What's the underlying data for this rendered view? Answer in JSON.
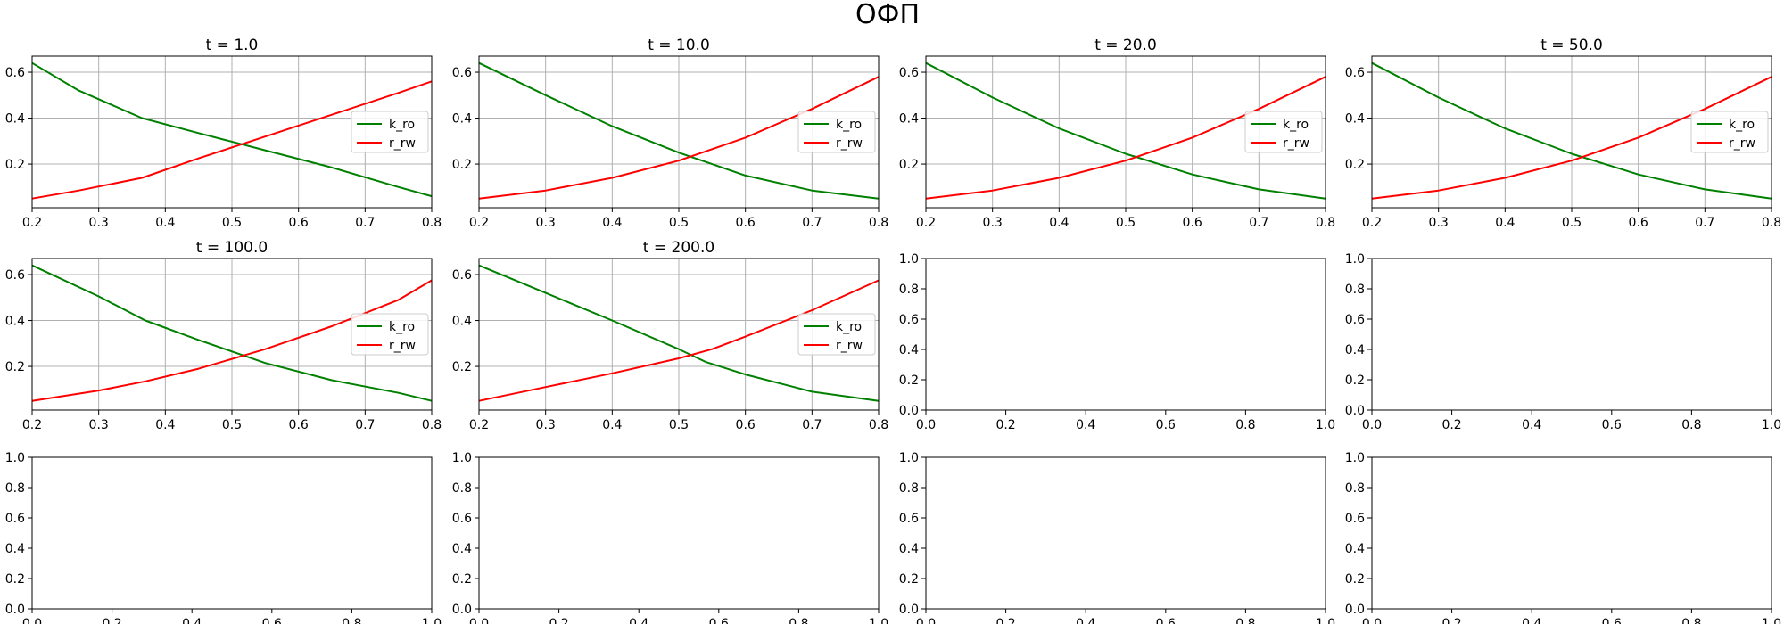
{
  "figure": {
    "title": "ОФП"
  },
  "colors": {
    "k_ro": "#008000",
    "r_rw": "#ff0000",
    "grid": "#b0b0b0",
    "axes": "#000000"
  },
  "chart_data": [
    {
      "type": "line",
      "title": "t = 1.0",
      "grid": true,
      "legend": "center-right",
      "xlim": [
        0.2,
        0.8
      ],
      "ylim": [
        0.01,
        0.67
      ],
      "xticks": [
        "0.2",
        "0.3",
        "0.4",
        "0.5",
        "0.6",
        "0.7",
        "0.8"
      ],
      "yticks": [
        "0.2",
        "0.4",
        "0.6"
      ],
      "series": [
        {
          "name": "k_ro",
          "x": [
            0.2,
            0.27,
            0.365,
            0.45,
            0.55,
            0.65,
            0.75,
            0.8
          ],
          "y": [
            0.64,
            0.52,
            0.4,
            0.335,
            0.26,
            0.185,
            0.1,
            0.06
          ]
        },
        {
          "name": "r_rw",
          "x": [
            0.2,
            0.27,
            0.365,
            0.45,
            0.55,
            0.65,
            0.75,
            0.8
          ],
          "y": [
            0.05,
            0.085,
            0.14,
            0.225,
            0.32,
            0.415,
            0.51,
            0.56
          ]
        }
      ]
    },
    {
      "type": "line",
      "title": "t = 10.0",
      "grid": true,
      "legend": "center-right",
      "xlim": [
        0.2,
        0.8
      ],
      "ylim": [
        0.01,
        0.67
      ],
      "xticks": [
        "0.2",
        "0.3",
        "0.4",
        "0.5",
        "0.6",
        "0.7",
        "0.8"
      ],
      "yticks": [
        "0.2",
        "0.4",
        "0.6"
      ],
      "series": [
        {
          "name": "k_ro",
          "x": [
            0.2,
            0.3,
            0.4,
            0.5,
            0.6,
            0.7,
            0.8
          ],
          "y": [
            0.64,
            0.5,
            0.365,
            0.25,
            0.15,
            0.085,
            0.05
          ]
        },
        {
          "name": "r_rw",
          "x": [
            0.2,
            0.3,
            0.4,
            0.5,
            0.6,
            0.7,
            0.8
          ],
          "y": [
            0.05,
            0.085,
            0.14,
            0.215,
            0.315,
            0.44,
            0.58
          ]
        }
      ]
    },
    {
      "type": "line",
      "title": "t = 20.0",
      "grid": true,
      "legend": "center-right",
      "xlim": [
        0.2,
        0.8
      ],
      "ylim": [
        0.01,
        0.67
      ],
      "xticks": [
        "0.2",
        "0.3",
        "0.4",
        "0.5",
        "0.6",
        "0.7",
        "0.8"
      ],
      "yticks": [
        "0.2",
        "0.4",
        "0.6"
      ],
      "series": [
        {
          "name": "k_ro",
          "x": [
            0.2,
            0.3,
            0.4,
            0.5,
            0.6,
            0.7,
            0.8
          ],
          "y": [
            0.64,
            0.49,
            0.355,
            0.245,
            0.155,
            0.09,
            0.05
          ]
        },
        {
          "name": "r_rw",
          "x": [
            0.2,
            0.3,
            0.4,
            0.5,
            0.6,
            0.7,
            0.8
          ],
          "y": [
            0.05,
            0.085,
            0.14,
            0.215,
            0.315,
            0.44,
            0.58
          ]
        }
      ]
    },
    {
      "type": "line",
      "title": "t = 50.0",
      "grid": true,
      "legend": "center-right",
      "xlim": [
        0.2,
        0.8
      ],
      "ylim": [
        0.01,
        0.67
      ],
      "xticks": [
        "0.2",
        "0.3",
        "0.4",
        "0.5",
        "0.6",
        "0.7",
        "0.8"
      ],
      "yticks": [
        "0.2",
        "0.4",
        "0.6"
      ],
      "series": [
        {
          "name": "k_ro",
          "x": [
            0.2,
            0.3,
            0.4,
            0.5,
            0.6,
            0.7,
            0.8
          ],
          "y": [
            0.64,
            0.49,
            0.355,
            0.245,
            0.155,
            0.09,
            0.05
          ]
        },
        {
          "name": "r_rw",
          "x": [
            0.2,
            0.3,
            0.4,
            0.5,
            0.6,
            0.7,
            0.8
          ],
          "y": [
            0.05,
            0.085,
            0.14,
            0.215,
            0.315,
            0.44,
            0.58
          ]
        }
      ]
    },
    {
      "type": "line",
      "title": "t = 100.0",
      "grid": true,
      "legend": "center-right",
      "xlim": [
        0.2,
        0.8
      ],
      "ylim": [
        0.01,
        0.67
      ],
      "xticks": [
        "0.2",
        "0.3",
        "0.4",
        "0.5",
        "0.6",
        "0.7",
        "0.8"
      ],
      "yticks": [
        "0.2",
        "0.4",
        "0.6"
      ],
      "series": [
        {
          "name": "k_ro",
          "x": [
            0.2,
            0.3,
            0.37,
            0.45,
            0.55,
            0.65,
            0.75,
            0.8
          ],
          "y": [
            0.64,
            0.505,
            0.4,
            0.315,
            0.215,
            0.14,
            0.085,
            0.05
          ]
        },
        {
          "name": "r_rw",
          "x": [
            0.2,
            0.3,
            0.37,
            0.45,
            0.55,
            0.65,
            0.75,
            0.8
          ],
          "y": [
            0.05,
            0.095,
            0.135,
            0.19,
            0.275,
            0.375,
            0.49,
            0.575
          ]
        }
      ]
    },
    {
      "type": "line",
      "title": "t = 200.0",
      "grid": true,
      "legend": "center-right",
      "xlim": [
        0.2,
        0.8
      ],
      "ylim": [
        0.01,
        0.67
      ],
      "xticks": [
        "0.2",
        "0.3",
        "0.4",
        "0.5",
        "0.6",
        "0.7",
        "0.8"
      ],
      "yticks": [
        "0.2",
        "0.4",
        "0.6"
      ],
      "series": [
        {
          "name": "k_ro",
          "x": [
            0.2,
            0.3,
            0.4,
            0.5,
            0.54,
            0.6,
            0.7,
            0.8
          ],
          "y": [
            0.64,
            0.52,
            0.4,
            0.275,
            0.22,
            0.165,
            0.09,
            0.05
          ]
        },
        {
          "name": "r_rw",
          "x": [
            0.2,
            0.3,
            0.4,
            0.5,
            0.55,
            0.6,
            0.7,
            0.8
          ],
          "y": [
            0.05,
            0.11,
            0.17,
            0.235,
            0.275,
            0.33,
            0.445,
            0.575
          ]
        }
      ]
    },
    {
      "type": "line",
      "title": "",
      "grid": false,
      "xlim": [
        0,
        1
      ],
      "ylim": [
        0,
        1
      ],
      "xticks": [
        "0.0",
        "0.2",
        "0.4",
        "0.6",
        "0.8",
        "1.0"
      ],
      "yticks": [
        "0.0",
        "0.2",
        "0.4",
        "0.6",
        "0.8",
        "1.0"
      ],
      "series": []
    },
    {
      "type": "line",
      "title": "",
      "grid": false,
      "xlim": [
        0,
        1
      ],
      "ylim": [
        0,
        1
      ],
      "xticks": [
        "0.0",
        "0.2",
        "0.4",
        "0.6",
        "0.8",
        "1.0"
      ],
      "yticks": [
        "0.0",
        "0.2",
        "0.4",
        "0.6",
        "0.8",
        "1.0"
      ],
      "series": []
    },
    {
      "type": "line",
      "title": "",
      "grid": false,
      "xlim": [
        0,
        1
      ],
      "ylim": [
        0,
        1
      ],
      "xticks": [
        "0.0",
        "0.2",
        "0.4",
        "0.6",
        "0.8",
        "1.0"
      ],
      "yticks": [
        "0.0",
        "0.2",
        "0.4",
        "0.6",
        "0.8",
        "1.0"
      ],
      "series": []
    },
    {
      "type": "line",
      "title": "",
      "grid": false,
      "xlim": [
        0,
        1
      ],
      "ylim": [
        0,
        1
      ],
      "xticks": [
        "0.0",
        "0.2",
        "0.4",
        "0.6",
        "0.8",
        "1.0"
      ],
      "yticks": [
        "0.0",
        "0.2",
        "0.4",
        "0.6",
        "0.8",
        "1.0"
      ],
      "series": []
    },
    {
      "type": "line",
      "title": "",
      "grid": false,
      "xlim": [
        0,
        1
      ],
      "ylim": [
        0,
        1
      ],
      "xticks": [
        "0.0",
        "0.2",
        "0.4",
        "0.6",
        "0.8",
        "1.0"
      ],
      "yticks": [
        "0.0",
        "0.2",
        "0.4",
        "0.6",
        "0.8",
        "1.0"
      ],
      "series": []
    },
    {
      "type": "line",
      "title": "",
      "grid": false,
      "xlim": [
        0,
        1
      ],
      "ylim": [
        0,
        1
      ],
      "xticks": [
        "0.0",
        "0.2",
        "0.4",
        "0.6",
        "0.8",
        "1.0"
      ],
      "yticks": [
        "0.0",
        "0.2",
        "0.4",
        "0.6",
        "0.8",
        "1.0"
      ],
      "series": []
    }
  ]
}
